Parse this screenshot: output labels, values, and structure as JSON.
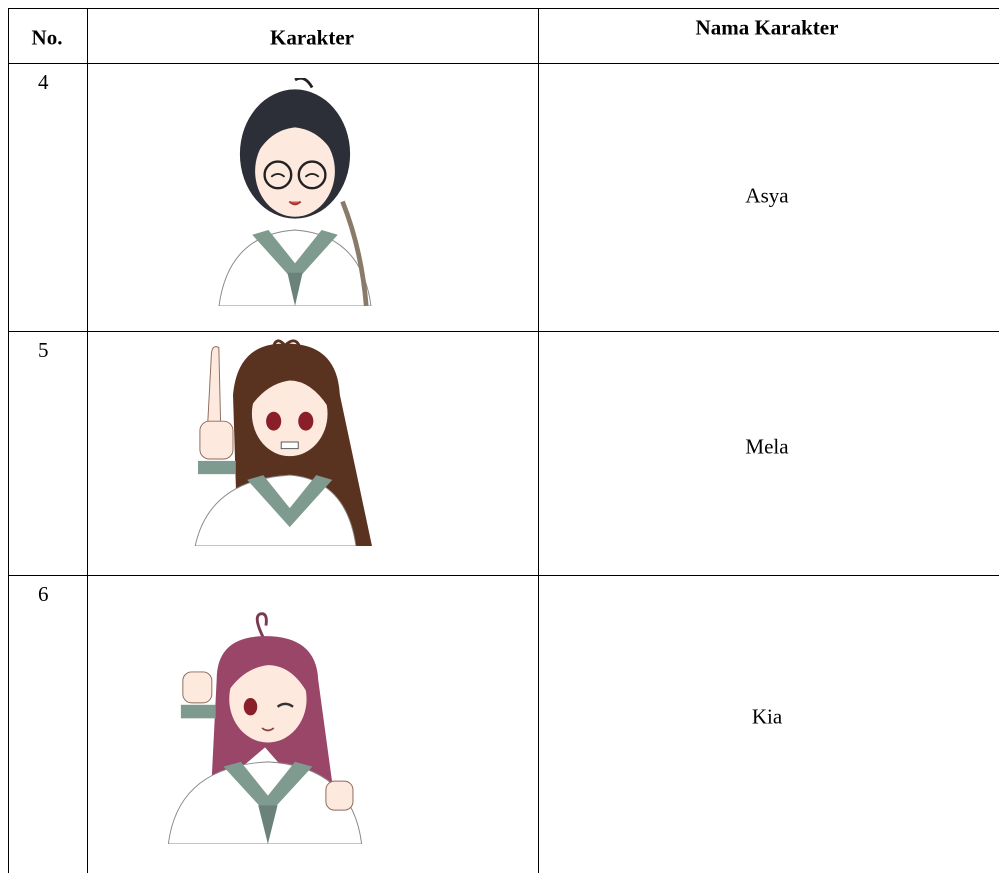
{
  "table": {
    "header": [
      "No.",
      "Karakter",
      "Nama Karakter"
    ],
    "rows": [
      [
        4,
        "Asya"
      ],
      [
        5,
        "Mela"
      ],
      [
        6,
        "Kia"
      ]
    ]
  }
}
